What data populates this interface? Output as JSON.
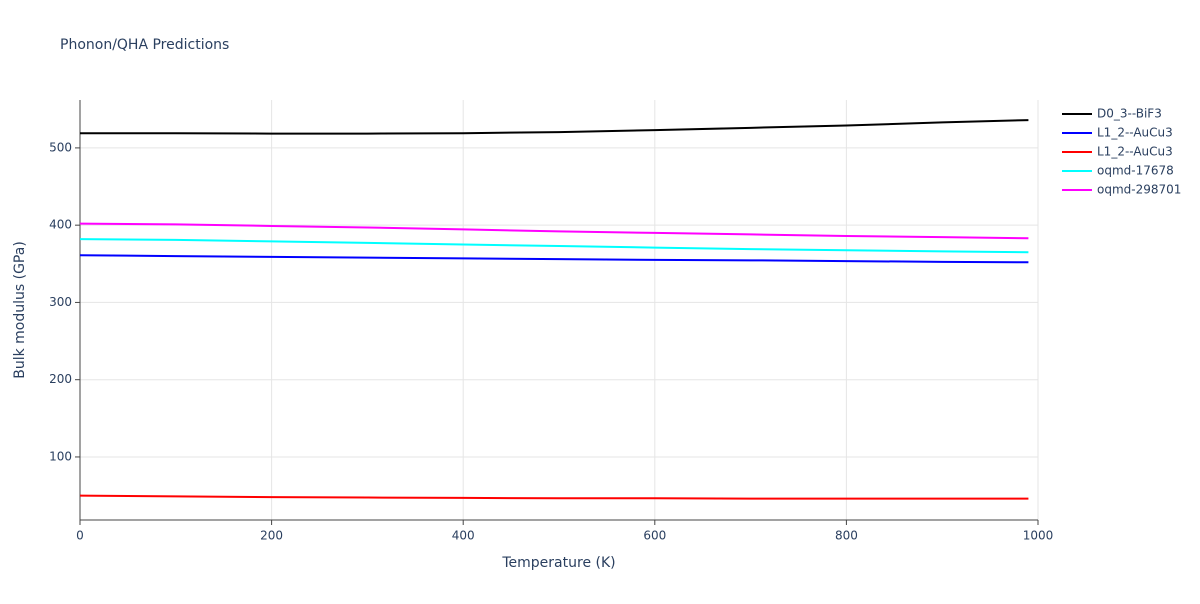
{
  "chart_data": {
    "type": "line",
    "title": "Phonon/QHA Predictions",
    "x_label": "Temperature (K)",
    "y_label": "Bulk modulus (GPa)",
    "x": [
      0,
      100,
      200,
      300,
      400,
      500,
      600,
      700,
      800,
      900,
      990
    ],
    "series": [
      {
        "name": "D0_3--BiF3",
        "color": "#000000",
        "values": [
          519,
          519,
          518.5,
          518.5,
          519,
          520.5,
          523,
          526,
          529,
          533,
          536
        ]
      },
      {
        "name": "L1_2--AuCu3",
        "color": "#0000ff",
        "values": [
          361,
          360,
          359,
          358,
          357,
          356,
          355,
          354.5,
          353.5,
          352.5,
          352
        ]
      },
      {
        "name": "L1_2--AuCu3",
        "color": "#ff0000",
        "values": [
          50,
          49,
          48,
          47.5,
          47,
          46.5,
          46.5,
          46,
          46,
          46,
          46
        ]
      },
      {
        "name": "oqmd-17678",
        "color": "#00ffff",
        "values": [
          382,
          381,
          379,
          377,
          375,
          373,
          371,
          369,
          367.5,
          366,
          365
        ]
      },
      {
        "name": "oqmd-298701",
        "color": "#ff00ff",
        "values": [
          402,
          401,
          399,
          397,
          394.5,
          392,
          390,
          388,
          386,
          384.5,
          383
        ]
      }
    ],
    "xlim": [
      0,
      1000
    ],
    "xticks": [
      0,
      200,
      400,
      600,
      800,
      1000
    ],
    "ylim": [
      18.4,
      562
    ],
    "yticks": [
      100,
      200,
      300,
      400,
      500
    ],
    "grid": true,
    "legend": "right"
  }
}
